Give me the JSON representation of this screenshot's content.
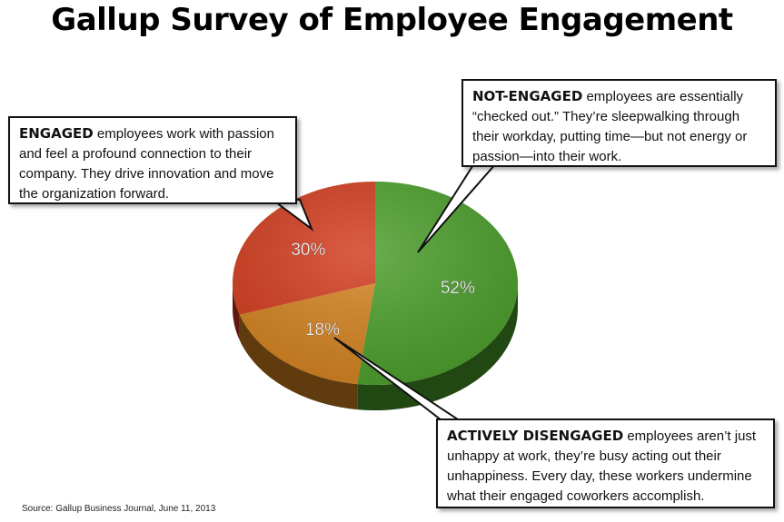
{
  "title": "Gallup Survey of Employee Engagement",
  "source": "Source: Gallup Business Journal, June 11, 2013",
  "colors": {
    "engaged": "#d13a1c",
    "not_engaged": "#4a9e2a",
    "actively_disengaged": "#d4821e"
  },
  "chart_data": {
    "type": "pie",
    "title": "Gallup Survey of Employee Engagement",
    "slices": [
      {
        "label": "52%",
        "value": 52,
        "category": "NOT-ENGAGED"
      },
      {
        "label": "18%",
        "value": 18,
        "category": "ACTIVELY DISENGAGED"
      },
      {
        "label": "30%",
        "value": 30,
        "category": "ENGAGED"
      }
    ]
  },
  "callouts": {
    "engaged": {
      "heading": "ENGAGED",
      "text": " employees work with passion and feel a profound connection to their company. They drive innovation and move the organization forward."
    },
    "not_engaged": {
      "heading": "NOT-ENGAGED",
      "text": " employees are essentially “checked out.” They’re sleepwalking through their workday, putting time—but not energy or passion—into their work."
    },
    "actively_disengaged": {
      "heading": "ACTIVELY DISENGAGED",
      "text": " employees aren’t just unhappy at work, they’re busy acting out their unhappiness. Every day, these workers undermine what their engaged coworkers accomplish."
    }
  }
}
